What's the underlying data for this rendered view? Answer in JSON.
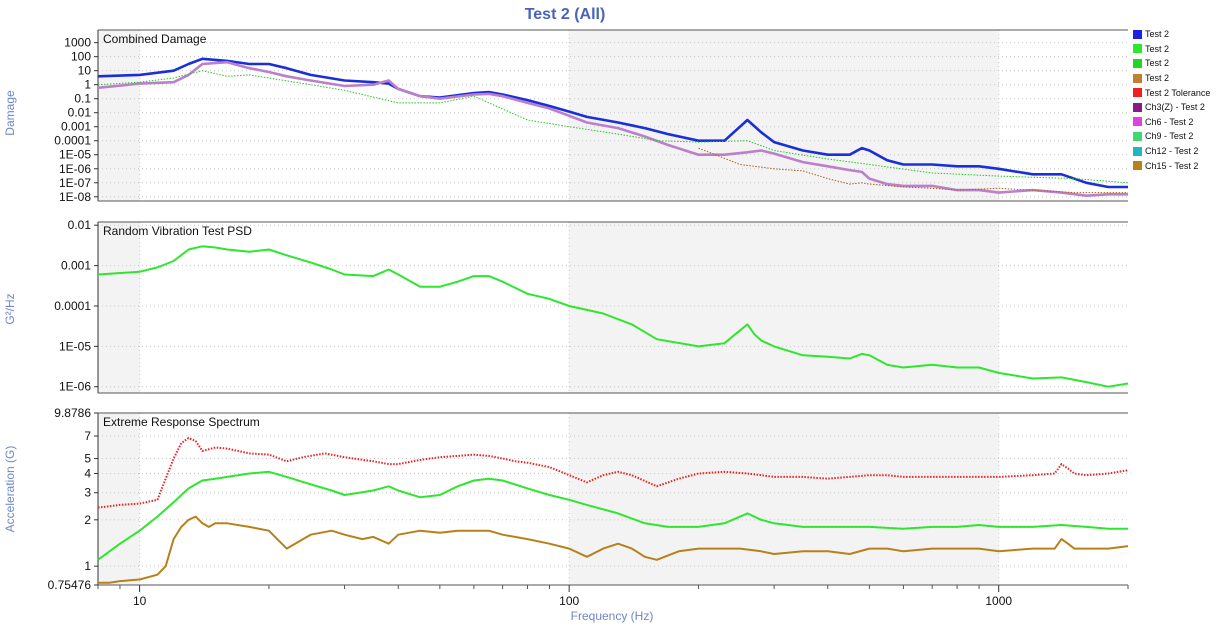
{
  "title": "Test 2 (All)",
  "xlabel": "Frequency (Hz)",
  "legend": [
    {
      "label": "Test 2",
      "color": "#1f1fe6"
    },
    {
      "label": "Test 2",
      "color": "#2ee62e"
    },
    {
      "label": "Test 2",
      "color": "#22d622"
    },
    {
      "label": "Test 2",
      "color": "#c08030"
    },
    {
      "label": "Test 2 Tolerance",
      "color": "#ee2020"
    },
    {
      "label": "Ch3(Z) - Test 2",
      "color": "#8a1a8a"
    },
    {
      "label": "Ch6 - Test 2",
      "color": "#e040e0"
    },
    {
      "label": "Ch9 - Test 2",
      "color": "#40d870"
    },
    {
      "label": "Ch12 - Test 2",
      "color": "#20b8c0"
    },
    {
      "label": "Ch15 - Test 2",
      "color": "#b8801a"
    }
  ],
  "chart_data": [
    {
      "type": "line",
      "title": "Combined Damage",
      "ylabel": "Damage",
      "yscale": "log",
      "xscale": "log",
      "xlim": [
        8,
        2000
      ],
      "ylim": [
        5e-09,
        8000
      ],
      "yticks": [
        "1000",
        "100",
        "10",
        "1",
        "0.1",
        "0.01",
        "0.001",
        "0.0001",
        "1E-05",
        "1E-06",
        "1E-07",
        "1E-08"
      ],
      "xticks": [
        "10",
        "100",
        "1000"
      ],
      "series": [
        {
          "name": "Test 2",
          "color": "#1a2fd8",
          "width": 2.6,
          "x": [
            8,
            10,
            12,
            13,
            14,
            16,
            18,
            20,
            22,
            25,
            30,
            35,
            38,
            40,
            45,
            50,
            60,
            65,
            70,
            80,
            90,
            100,
            110,
            130,
            150,
            170,
            200,
            230,
            260,
            280,
            300,
            350,
            400,
            450,
            480,
            500,
            550,
            600,
            700,
            800,
            900,
            1000,
            1200,
            1400,
            1600,
            1800,
            2000
          ],
          "y": [
            4,
            5,
            10,
            30,
            70,
            50,
            30,
            30,
            15,
            5,
            2,
            1.5,
            1.2,
            0.5,
            0.15,
            0.12,
            0.25,
            0.3,
            0.2,
            0.08,
            0.03,
            0.012,
            0.005,
            0.002,
            0.0008,
            0.0003,
            0.0001,
            0.0001,
            0.003,
            0.0004,
            8e-05,
            2e-05,
            1e-05,
            1e-05,
            3e-05,
            2e-05,
            4e-06,
            2e-06,
            2e-06,
            1.5e-06,
            1.5e-06,
            1e-06,
            4e-07,
            4e-07,
            1e-07,
            5e-08,
            5e-08
          ]
        },
        {
          "name": "Ch3(Z) - Test 2",
          "color": "#bb7fcc",
          "width": 2.6,
          "x": [
            8,
            10,
            12,
            13,
            14,
            16,
            18,
            20,
            22,
            25,
            30,
            35,
            38,
            40,
            45,
            50,
            60,
            65,
            70,
            80,
            90,
            100,
            110,
            130,
            150,
            170,
            200,
            230,
            260,
            280,
            300,
            350,
            400,
            450,
            480,
            500,
            550,
            600,
            700,
            800,
            900,
            1000,
            1200,
            1400,
            1600,
            1800,
            2000
          ],
          "y": [
            0.6,
            1.2,
            1.5,
            5,
            30,
            40,
            15,
            8,
            4,
            2,
            0.8,
            1,
            2,
            0.5,
            0.15,
            0.1,
            0.2,
            0.22,
            0.15,
            0.05,
            0.02,
            0.006,
            0.002,
            0.0008,
            0.0002,
            5e-05,
            1e-05,
            1e-05,
            1.5e-05,
            2e-05,
            1.2e-05,
            3e-06,
            1.5e-06,
            8e-07,
            6e-07,
            2e-07,
            8e-08,
            6e-08,
            6e-08,
            3e-08,
            3e-08,
            2e-08,
            3e-08,
            2e-08,
            1.2e-08,
            1.5e-08,
            1.5e-08
          ]
        },
        {
          "name": "Test 2",
          "color": "#22c822",
          "dotted": true,
          "width": 1,
          "x": [
            8,
            10,
            12,
            14,
            16,
            18,
            20,
            25,
            30,
            40,
            50,
            60,
            80,
            100,
            130,
            160,
            200,
            260,
            300,
            400,
            500,
            700,
            1000,
            1500,
            2000
          ],
          "y": [
            1,
            1.5,
            3,
            10,
            4,
            5,
            3,
            1,
            0.4,
            0.05,
            0.05,
            0.15,
            0.003,
            0.001,
            0.0003,
            0.0001,
            8e-05,
            0.0001,
            2e-05,
            5e-06,
            2e-06,
            5e-07,
            3e-07,
            2e-07,
            1e-07
          ]
        },
        {
          "name": "Ch15 - Test 2",
          "color": "#a8621a",
          "dotted": true,
          "width": 1,
          "x": [
            200,
            250,
            300,
            350,
            400,
            450,
            480,
            500,
            600,
            700,
            800,
            1000,
            1500,
            2000
          ],
          "y": [
            3e-05,
            2e-06,
            1e-06,
            7e-07,
            2e-07,
            8e-08,
            1e-07,
            8e-08,
            5e-08,
            4e-08,
            3e-08,
            4e-08,
            2e-08,
            2e-08
          ]
        }
      ]
    },
    {
      "type": "line",
      "title": "Random Vibration Test PSD",
      "ylabel": "G²/Hz",
      "yscale": "log",
      "xscale": "log",
      "xlim": [
        8,
        2000
      ],
      "ylim": [
        7e-07,
        0.012
      ],
      "yticks": [
        "0.01",
        "0.001",
        "0.0001",
        "1E-05",
        "1E-06"
      ],
      "xticks": [
        "10",
        "100",
        "1000"
      ],
      "series": [
        {
          "name": "Test 2",
          "color": "#2ee62e",
          "width": 2,
          "x": [
            8,
            10,
            11,
            12,
            13,
            14,
            15,
            16,
            18,
            20,
            22,
            25,
            28,
            30,
            35,
            38,
            40,
            45,
            50,
            55,
            60,
            65,
            70,
            80,
            90,
            100,
            110,
            120,
            140,
            160,
            200,
            230,
            250,
            260,
            270,
            280,
            300,
            350,
            400,
            450,
            480,
            500,
            550,
            600,
            700,
            800,
            900,
            1000,
            1200,
            1400,
            1600,
            1800,
            2000
          ],
          "y": [
            0.0006,
            0.0007,
            0.0009,
            0.0013,
            0.0025,
            0.003,
            0.0028,
            0.0025,
            0.0022,
            0.0025,
            0.0018,
            0.0012,
            0.0008,
            0.0006,
            0.00055,
            0.0008,
            0.0006,
            0.0003,
            0.0003,
            0.0004,
            0.00055,
            0.00055,
            0.0004,
            0.0002,
            0.00015,
            0.0001,
            8e-05,
            6.5e-05,
            3.5e-05,
            1.5e-05,
            1e-05,
            1.2e-05,
            2.5e-05,
            3.5e-05,
            2e-05,
            1.4e-05,
            1e-05,
            6e-06,
            5.5e-06,
            5e-06,
            6.5e-06,
            6e-06,
            3.5e-06,
            3e-06,
            3.5e-06,
            3e-06,
            3e-06,
            2.2e-06,
            1.6e-06,
            1.7e-06,
            1.3e-06,
            1e-06,
            1.2e-06
          ]
        }
      ]
    },
    {
      "type": "line",
      "title": "Extreme Response Spectrum",
      "ylabel": "Acceleration (G)",
      "yscale": "log",
      "xscale": "log",
      "xlim": [
        8,
        2000
      ],
      "ylim": [
        0.75476,
        9.8786
      ],
      "yticks": [
        "9.8786",
        "7",
        "5",
        "4",
        "3",
        "2",
        "1",
        "0.75476"
      ],
      "xticks": [
        "10",
        "100",
        "1000"
      ],
      "series": [
        {
          "name": "Test 2 Tolerance",
          "color": "#ee2020",
          "dotted": true,
          "width": 2,
          "x": [
            8,
            9,
            10,
            11,
            12,
            12.5,
            13,
            13.5,
            14,
            15,
            16,
            18,
            20,
            22,
            24,
            27,
            30,
            35,
            38,
            40,
            45,
            50,
            55,
            60,
            65,
            70,
            75,
            80,
            90,
            100,
            110,
            120,
            130,
            140,
            160,
            180,
            200,
            230,
            260,
            280,
            300,
            350,
            400,
            450,
            500,
            550,
            600,
            700,
            800,
            1000,
            1200,
            1350,
            1400,
            1450,
            1500,
            1600,
            1800,
            2000
          ],
          "y": [
            2.4,
            2.5,
            2.55,
            2.7,
            5,
            6.3,
            6.8,
            6.5,
            5.6,
            5.9,
            5.8,
            5.4,
            5.3,
            4.8,
            5.1,
            5.4,
            5.1,
            4.8,
            4.6,
            4.6,
            4.9,
            5.1,
            5.2,
            5.3,
            5.2,
            5,
            4.8,
            4.7,
            4.4,
            3.9,
            3.5,
            3.9,
            4.1,
            3.9,
            3.3,
            3.7,
            4,
            4.1,
            4,
            3.9,
            3.8,
            3.8,
            3.7,
            3.8,
            3.9,
            3.9,
            3.8,
            3.8,
            3.8,
            3.8,
            3.9,
            4,
            4.6,
            4.3,
            4,
            3.9,
            4,
            4.2
          ]
        },
        {
          "name": "Test 2",
          "color": "#2ee62e",
          "width": 2,
          "x": [
            8,
            9,
            10,
            11,
            12,
            13,
            14,
            15,
            16,
            18,
            20,
            22,
            25,
            28,
            30,
            35,
            38,
            40,
            45,
            50,
            55,
            60,
            65,
            70,
            80,
            90,
            100,
            110,
            130,
            150,
            170,
            200,
            230,
            250,
            260,
            280,
            300,
            350,
            400,
            500,
            600,
            700,
            800,
            900,
            1000,
            1200,
            1400,
            1600,
            1800,
            2000
          ],
          "y": [
            1.1,
            1.4,
            1.7,
            2.1,
            2.6,
            3.2,
            3.6,
            3.7,
            3.8,
            4,
            4.1,
            3.8,
            3.4,
            3.1,
            2.9,
            3.1,
            3.3,
            3.1,
            2.8,
            2.9,
            3.3,
            3.6,
            3.7,
            3.6,
            3.2,
            2.9,
            2.7,
            2.5,
            2.2,
            1.9,
            1.8,
            1.8,
            1.9,
            2.1,
            2.2,
            2,
            1.9,
            1.8,
            1.8,
            1.8,
            1.75,
            1.8,
            1.8,
            1.85,
            1.8,
            1.8,
            1.85,
            1.8,
            1.75,
            1.75
          ]
        },
        {
          "name": "Test 2",
          "color": "#b8801a",
          "width": 2,
          "x": [
            8,
            8.5,
            9,
            10,
            11,
            11.5,
            12,
            12.5,
            13,
            13.5,
            14,
            14.5,
            15,
            16,
            18,
            20,
            22,
            25,
            28,
            30,
            33,
            35,
            38,
            40,
            45,
            50,
            55,
            60,
            65,
            70,
            80,
            90,
            100,
            110,
            120,
            130,
            140,
            150,
            160,
            180,
            200,
            220,
            250,
            280,
            300,
            350,
            400,
            450,
            500,
            550,
            600,
            700,
            800,
            900,
            1000,
            1200,
            1350,
            1400,
            1450,
            1500,
            1600,
            1800,
            2000
          ],
          "y": [
            0.78,
            0.78,
            0.8,
            0.82,
            0.88,
            1,
            1.5,
            1.8,
            2,
            2.1,
            1.9,
            1.8,
            1.9,
            1.9,
            1.8,
            1.7,
            1.3,
            1.6,
            1.7,
            1.6,
            1.5,
            1.55,
            1.4,
            1.6,
            1.7,
            1.65,
            1.7,
            1.7,
            1.7,
            1.6,
            1.5,
            1.4,
            1.3,
            1.15,
            1.3,
            1.4,
            1.3,
            1.15,
            1.1,
            1.25,
            1.3,
            1.3,
            1.3,
            1.25,
            1.2,
            1.25,
            1.25,
            1.2,
            1.3,
            1.3,
            1.25,
            1.3,
            1.3,
            1.3,
            1.25,
            1.3,
            1.3,
            1.5,
            1.4,
            1.3,
            1.3,
            1.3,
            1.35
          ]
        }
      ]
    }
  ]
}
